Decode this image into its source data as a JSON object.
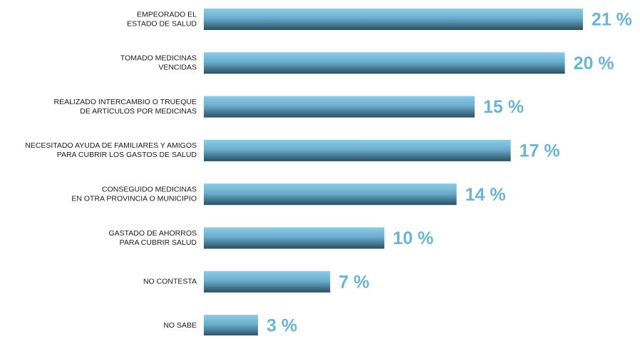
{
  "chart_data": {
    "type": "bar",
    "orientation": "horizontal",
    "categories": [
      [
        "EMPEORADO EL",
        "ESTADO DE SALUD"
      ],
      [
        "TOMADO MEDICINAS",
        "VENCIDAS"
      ],
      [
        "REALIZADO INTERCAMBIO O TRUEQUE",
        "DE ARTÍCULOS POR MEDICINAS"
      ],
      [
        "NECESITADO AYUDA DE FAMILIARES Y AMIGOS",
        "PARA CUBRIR LOS GASTOS DE SALUD"
      ],
      [
        "CONSEGUIDO MEDICINAS",
        "EN OTRA PROVINCIA O MUNICIPIO"
      ],
      [
        "GASTADO DE AHORROS",
        "PARA CUBRIR SALUD"
      ],
      [
        "NO CONTESTA"
      ],
      [
        "NO  SABE"
      ]
    ],
    "values": [
      21,
      20,
      15,
      17,
      14,
      10,
      7,
      3
    ],
    "value_labels": [
      "21 %",
      "20 %",
      "15 %",
      "17 %",
      "14 %",
      "10 %",
      "7 %",
      "3 %"
    ],
    "color": "#4a8fb0"
  }
}
